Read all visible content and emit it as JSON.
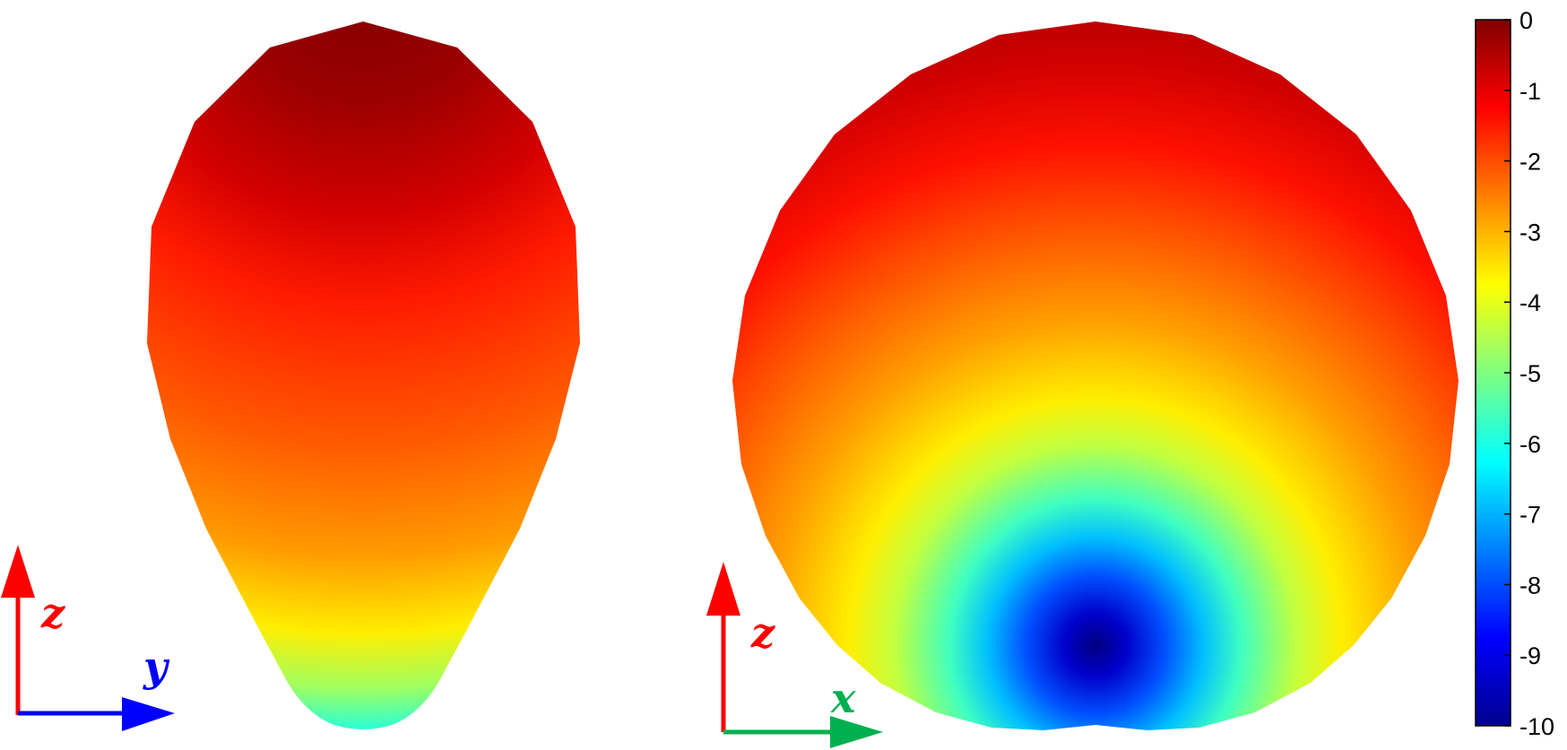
{
  "left_panel": {
    "axes": {
      "vertical": "z",
      "horizontal": "y"
    },
    "colors": {
      "vertical": "#ff0000",
      "horizontal": "#0000ff"
    }
  },
  "right_panel": {
    "axes": {
      "vertical": "z",
      "horizontal": "x"
    },
    "colors": {
      "vertical": "#ff0000",
      "horizontal": "#00b050"
    }
  },
  "colorbar": {
    "colormap": "jet",
    "min": -10,
    "max": 0,
    "ticks": [
      "0",
      "-1",
      "-2",
      "-3",
      "-4",
      "-5",
      "-6",
      "-7",
      "-8",
      "-9",
      "-10"
    ]
  }
}
